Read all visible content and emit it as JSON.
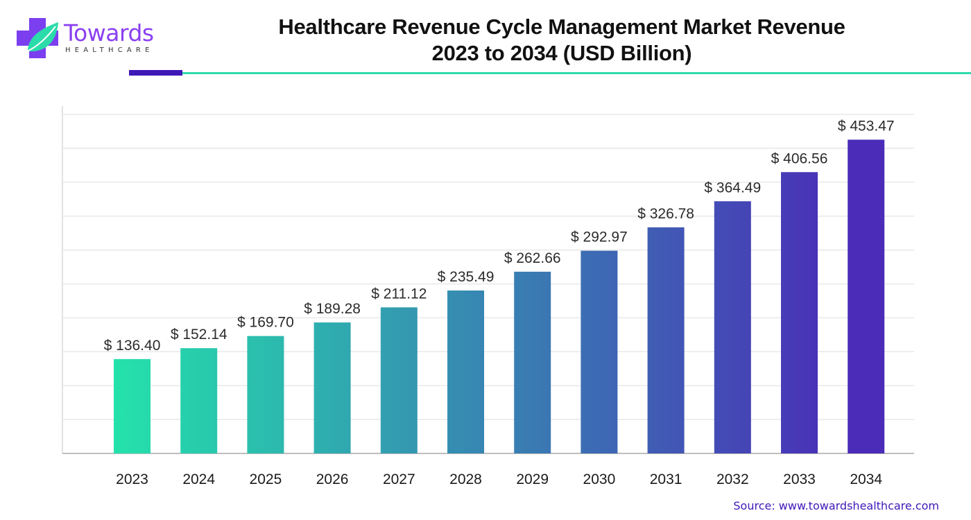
{
  "brand": {
    "name": "Towards",
    "subtitle": "HEALTHCARE",
    "colors": {
      "purple": "#7b3ff0",
      "teal": "#2bdcaa",
      "navy": "#3f18b8"
    }
  },
  "title_line1": "Healthcare Revenue Cycle Management Market Revenue",
  "title_line2": "2023 to 2034 (USD Billion)",
  "source": "Source: www.towardshealthcare.com",
  "chart_data": {
    "type": "bar",
    "title": "Healthcare Revenue Cycle Management Market Revenue 2023 to 2034 (USD Billion)",
    "xlabel": "",
    "ylabel": "",
    "categories": [
      "2023",
      "2024",
      "2025",
      "2026",
      "2027",
      "2028",
      "2029",
      "2030",
      "2031",
      "2032",
      "2033",
      "2034"
    ],
    "values": [
      136.4,
      152.14,
      169.7,
      189.28,
      211.12,
      235.49,
      262.66,
      292.97,
      326.78,
      364.49,
      406.56,
      453.47
    ],
    "value_labels": [
      "$ 136.40",
      "$ 152.14",
      "$ 169.70",
      "$ 189.28",
      "$ 211.12",
      "$ 235.49",
      "$ 262.66",
      "$ 292.97",
      "$ 326.78",
      "$ 364.49",
      "$ 406.56",
      "$ 453.47"
    ],
    "ylim": [
      0,
      490
    ],
    "y_gridlines": [
      49,
      98,
      147,
      196,
      245,
      294,
      343,
      392,
      441,
      490
    ],
    "y_tick_labels_shown": false,
    "grid": true,
    "legend": "none",
    "color_gradient": [
      "#24e2ab",
      "#4a2cb8"
    ]
  }
}
